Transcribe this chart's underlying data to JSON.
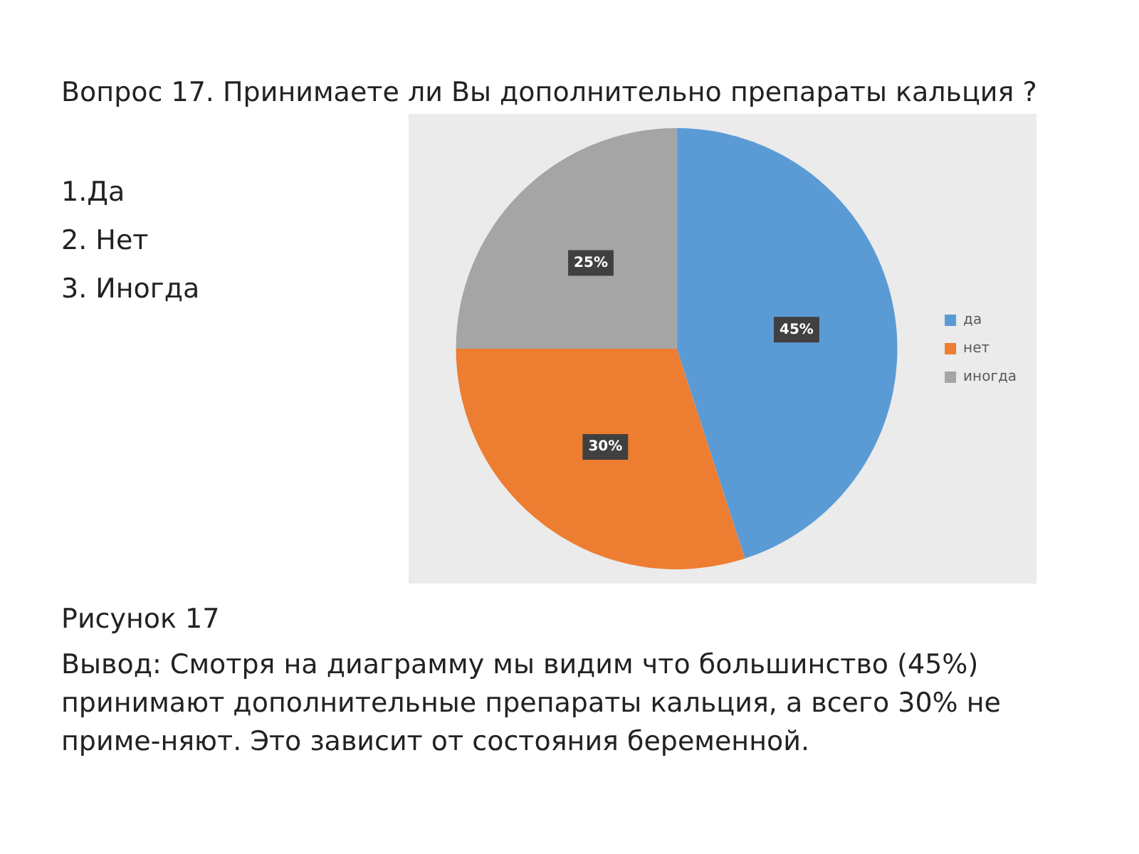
{
  "chart_data": {
    "type": "pie",
    "title": "Вопрос 17. Принимаете ли Вы дополнительно препараты кальция ?",
    "categories": [
      "да",
      "нет",
      "иногда"
    ],
    "values": [
      45,
      30,
      25
    ],
    "colors": [
      "#5b9bd5",
      "#ed7d31",
      "#a5a5a5"
    ],
    "value_labels": [
      "45%",
      "30%",
      "25%"
    ],
    "legend": "right",
    "annotations": [
      "1.Да",
      "2. Нет",
      "3. Иногда",
      "Рисунок 17",
      "Вывод: Смотря на диаграмму мы видим что большинство (45%) принимают дополнительные препараты кальция, а всего 30%  не приме-няют. Это зависит от состояния беременной."
    ]
  }
}
